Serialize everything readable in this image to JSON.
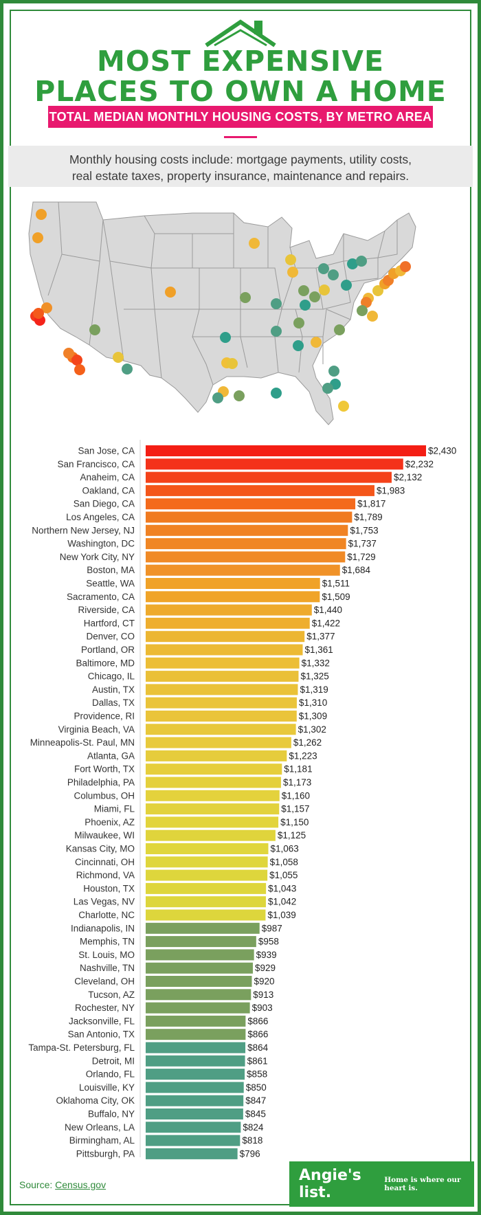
{
  "header": {
    "title_line1": "MOST EXPENSIVE",
    "title_line2": "PLACES TO OWN A HOME",
    "subtitle": "TOTAL MEDIAN MONTHLY HOUSING COSTS, BY METRO AREA",
    "note_line1": "Monthly housing costs include: mortgage payments, utility costs,",
    "note_line2": "real estate taxes, property insurance, maintenance and repairs.",
    "icon": "house-roof-icon"
  },
  "colors": {
    "brand_green": "#2f9e3e",
    "accent_pink": "#e8196e",
    "tier_top": "#f4231a",
    "tier_mid": "#f0a028",
    "tier_yellow": "#e0d43a",
    "tier_green": "#7aa05e",
    "tier_teal": "#4f9e84"
  },
  "map": {
    "markers": [
      {
        "city": "Seattle, WA",
        "color": "#f0a028"
      },
      {
        "city": "Portland, OR",
        "color": "#f0a028"
      },
      {
        "city": "Sacramento, CA",
        "color": "#f09028"
      },
      {
        "city": "San Francisco, CA",
        "color": "#f43a1a"
      },
      {
        "city": "San Jose, CA",
        "color": "#f4231a"
      },
      {
        "city": "Oakland, CA",
        "color": "#f45a1a"
      },
      {
        "city": "Los Angeles, CA",
        "color": "#f4701a"
      },
      {
        "city": "Anaheim, CA",
        "color": "#f4451a"
      },
      {
        "city": "San Diego, CA",
        "color": "#f4601a"
      },
      {
        "city": "Riverside, CA",
        "color": "#f08028"
      },
      {
        "city": "Las Vegas, NV",
        "color": "#7aa05e"
      },
      {
        "city": "Phoenix, AZ",
        "color": "#e8c43a"
      },
      {
        "city": "Tucson, AZ",
        "color": "#4f9e84"
      },
      {
        "city": "Denver, CO",
        "color": "#f0a028"
      },
      {
        "city": "Dallas, TX",
        "color": "#f0c038"
      },
      {
        "city": "Fort Worth, TX",
        "color": "#e8c43a"
      },
      {
        "city": "Austin, TX",
        "color": "#f0b838"
      },
      {
        "city": "San Antonio, TX",
        "color": "#4f9e84"
      },
      {
        "city": "Houston, TX",
        "color": "#7aa05e"
      },
      {
        "city": "Oklahoma City, OK",
        "color": "#2f9e8a"
      },
      {
        "city": "Kansas City, MO",
        "color": "#7aa05e"
      },
      {
        "city": "Minneapolis-St. Paul, MN",
        "color": "#f0b838"
      },
      {
        "city": "Milwaukee, WI",
        "color": "#e8c43a"
      },
      {
        "city": "Chicago, IL",
        "color": "#f0b838"
      },
      {
        "city": "St. Louis, MO",
        "color": "#4f9e84"
      },
      {
        "city": "Indianapolis, IN",
        "color": "#7aa05e"
      },
      {
        "city": "Louisville, KY",
        "color": "#2f9e8a"
      },
      {
        "city": "Memphis, TN",
        "color": "#4f9e84"
      },
      {
        "city": "Nashville, TN",
        "color": "#7aa05e"
      },
      {
        "city": "New Orleans, LA",
        "color": "#2f9e8a"
      },
      {
        "city": "Birmingham, AL",
        "color": "#2f9e8a"
      },
      {
        "city": "Atlanta, GA",
        "color": "#f0b838"
      },
      {
        "city": "Detroit, MI",
        "color": "#4f9e84"
      },
      {
        "city": "Cleveland, OH",
        "color": "#4f9e84"
      },
      {
        "city": "Columbus, OH",
        "color": "#e8c43a"
      },
      {
        "city": "Cincinnati, OH",
        "color": "#7aa05e"
      },
      {
        "city": "Pittsburgh, PA",
        "color": "#2f9e8a"
      },
      {
        "city": "Buffalo, NY",
        "color": "#2f9e8a"
      },
      {
        "city": "Rochester, NY",
        "color": "#4f9e84"
      },
      {
        "city": "Philadelphia, PA",
        "color": "#e8c43a"
      },
      {
        "city": "Baltimore, MD",
        "color": "#f0b838"
      },
      {
        "city": "Washington, DC",
        "color": "#f08028"
      },
      {
        "city": "Richmond, VA",
        "color": "#7aa05e"
      },
      {
        "city": "Virginia Beach, VA",
        "color": "#f0b838"
      },
      {
        "city": "Charlotte, NC",
        "color": "#7aa05e"
      },
      {
        "city": "Northern New Jersey, NJ",
        "color": "#f0a028"
      },
      {
        "city": "New York City, NY",
        "color": "#f08028"
      },
      {
        "city": "Hartford, CT",
        "color": "#f0a028"
      },
      {
        "city": "Providence, RI",
        "color": "#f0b838"
      },
      {
        "city": "Boston, MA",
        "color": "#f07028"
      },
      {
        "city": "Jacksonville, FL",
        "color": "#4f9e84"
      },
      {
        "city": "Orlando, FL",
        "color": "#2f9e8a"
      },
      {
        "city": "Tampa-St. Petersburg, FL",
        "color": "#4f9e84"
      },
      {
        "city": "Miami, FL",
        "color": "#f0c838"
      }
    ]
  },
  "chart_data": {
    "type": "bar",
    "orientation": "horizontal",
    "title": "TOTAL MEDIAN MONTHLY HOUSING COSTS, BY METRO AREA",
    "categories": [
      "San Jose, CA",
      "San Francisco, CA",
      "Anaheim, CA",
      "Oakland, CA",
      "San Diego, CA",
      "Los Angeles, CA",
      "Northern New Jersey, NJ",
      "Washington, DC",
      "New York City, NY",
      "Boston, MA",
      "Seattle, WA",
      "Sacramento, CA",
      "Riverside, CA",
      "Hartford, CT",
      "Denver, CO",
      "Portland, OR",
      "Baltimore, MD",
      "Chicago, IL",
      "Austin, TX",
      "Dallas, TX",
      "Providence, RI",
      "Virginia Beach, VA",
      "Minneapolis-St. Paul, MN",
      "Atlanta, GA",
      "Fort Worth, TX",
      "Philadelphia, PA",
      "Columbus, OH",
      "Miami, FL",
      "Phoenix, AZ",
      "Milwaukee, WI",
      "Kansas City, MO",
      "Cincinnati, OH",
      "Richmond, VA",
      "Houston, TX",
      "Las Vegas, NV",
      "Charlotte, NC",
      "Indianapolis, IN",
      "Memphis, TN",
      "St. Louis, MO",
      "Nashville, TN",
      "Cleveland, OH",
      "Tucson, AZ",
      "Rochester, NY",
      "Jacksonville, FL",
      "San Antonio, TX",
      "Tampa-St. Petersburg, FL",
      "Detroit, MI",
      "Orlando, FL",
      "Louisville, KY",
      "Oklahoma City, OK",
      "Buffalo, NY",
      "New Orleans, LA",
      "Birmingham, AL",
      "Pittsburgh, PA"
    ],
    "values": [
      2430,
      2232,
      2132,
      1983,
      1817,
      1789,
      1753,
      1737,
      1729,
      1684,
      1511,
      1509,
      1440,
      1422,
      1377,
      1361,
      1332,
      1325,
      1319,
      1310,
      1309,
      1302,
      1262,
      1223,
      1181,
      1173,
      1160,
      1157,
      1150,
      1125,
      1063,
      1058,
      1055,
      1043,
      1042,
      1039,
      987,
      958,
      939,
      929,
      920,
      913,
      903,
      866,
      866,
      864,
      861,
      858,
      850,
      847,
      845,
      824,
      818,
      796
    ],
    "value_labels": [
      "$2,430",
      "$2,232",
      "$2,132",
      "$1,983",
      "$1,817",
      "$1,789",
      "$1,753",
      "$1,737",
      "$1,729",
      "$1,684",
      "$1,511",
      "$1,509",
      "$1,440",
      "$1,422",
      "$1,377",
      "$1,361",
      "$1,332",
      "$1,325",
      "$1,319",
      "$1,310",
      "$1,309",
      "$1,302",
      "$1,262",
      "$1,223",
      "$1,181",
      "$1,173",
      "$1,160",
      "$1,157",
      "$1,150",
      "$1,125",
      "$1,063",
      "$1,058",
      "$1,055",
      "$1,043",
      "$1,042",
      "$1,039",
      "$987",
      "$958",
      "$939",
      "$929",
      "$920",
      "$913",
      "$903",
      "$866",
      "$866",
      "$864",
      "$861",
      "$858",
      "$850",
      "$847",
      "$845",
      "$824",
      "$818",
      "$796"
    ],
    "bar_colors": [
      "#f41e14",
      "#f4321a",
      "#f4421a",
      "#f4561a",
      "#f46a1c",
      "#f07a20",
      "#f08224",
      "#f08624",
      "#f08a26",
      "#f09228",
      "#f0a228",
      "#f0a428",
      "#eeaa2c",
      "#eeae2e",
      "#ecb632",
      "#ecba34",
      "#ecbe36",
      "#eac038",
      "#eac238",
      "#eac43a",
      "#eac43a",
      "#e8c83a",
      "#e8ca3c",
      "#e6cc3c",
      "#e6ce3c",
      "#e4d03c",
      "#e4d23c",
      "#e2d23c",
      "#e2d43c",
      "#e0d43c",
      "#e0d63c",
      "#dfd63c",
      "#ded63c",
      "#ded63c",
      "#ddd63c",
      "#ddd63c",
      "#7aa05e",
      "#7aa05e",
      "#7aa05e",
      "#7aa05e",
      "#7aa05e",
      "#7aa05e",
      "#7aa05e",
      "#7aa05e",
      "#7aa05e",
      "#4f9e84",
      "#4f9e84",
      "#4f9e84",
      "#4f9e84",
      "#4f9e84",
      "#4f9e84",
      "#4f9e84",
      "#4f9e84",
      "#4f9e84"
    ],
    "xlabel": "",
    "ylabel": "",
    "grid": false,
    "legend": "none"
  },
  "footer": {
    "source_label": "Source:",
    "source_value": "Census.gov",
    "logo_name": "Angie's list.",
    "logo_tagline": "Home is where our heart is."
  }
}
